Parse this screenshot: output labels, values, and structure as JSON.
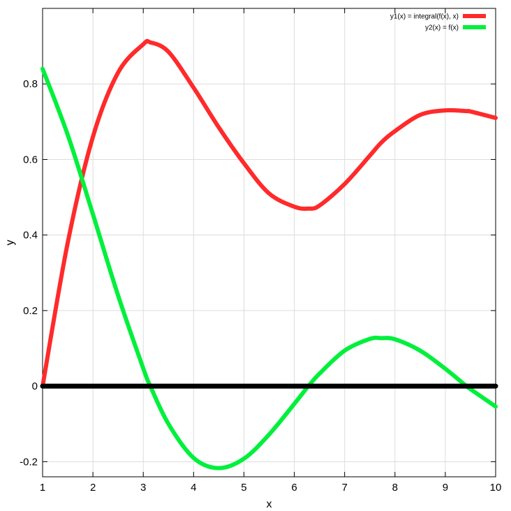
{
  "chart_data": {
    "type": "line",
    "title": "",
    "xlabel": "x",
    "ylabel": "y",
    "xlim": [
      1,
      10
    ],
    "ylim": [
      -0.24,
      1.0
    ],
    "grid": true,
    "legend_position": "top-right",
    "x_ticks": [
      1,
      2,
      3,
      4,
      5,
      6,
      7,
      8,
      9,
      10
    ],
    "x_tick_labels": [
      "1",
      "2",
      "3",
      "4",
      "5",
      "6",
      "7",
      "8",
      "9",
      "10"
    ],
    "y_ticks": [
      -0.2,
      0,
      0.2,
      0.4,
      0.6,
      0.8
    ],
    "y_tick_labels": [
      "-0.2",
      "0",
      "0.2",
      "0.4",
      "0.6",
      "0.8"
    ],
    "x": [
      1.0,
      1.5,
      2.0,
      2.5,
      3.0,
      3.14,
      3.5,
      4.0,
      4.5,
      5.0,
      5.5,
      6.0,
      6.28,
      6.5,
      7.0,
      7.5,
      7.73,
      8.0,
      8.5,
      9.0,
      9.42,
      9.5,
      10.0
    ],
    "series": [
      {
        "name": "y1(x) = integral(f(x), x)",
        "color": "#ff2a2a",
        "values": [
          0.0,
          0.38,
          0.66,
          0.83,
          0.905,
          0.91,
          0.885,
          0.79,
          0.685,
          0.59,
          0.51,
          0.475,
          0.47,
          0.478,
          0.535,
          0.61,
          0.645,
          0.675,
          0.718,
          0.73,
          0.728,
          0.727,
          0.71
        ]
      },
      {
        "name": "y2(x) = f(x)",
        "color": "#00f03c",
        "values": [
          0.84,
          0.665,
          0.455,
          0.24,
          0.047,
          0.0,
          -0.1,
          -0.19,
          -0.217,
          -0.192,
          -0.128,
          -0.047,
          0.0,
          0.033,
          0.094,
          0.125,
          0.127,
          0.124,
          0.094,
          0.046,
          0.0,
          -0.008,
          -0.054
        ]
      },
      {
        "name": "",
        "color": "#000000",
        "values": [
          0,
          0,
          0,
          0,
          0,
          0,
          0,
          0,
          0,
          0,
          0,
          0,
          0,
          0,
          0,
          0,
          0,
          0,
          0,
          0,
          0,
          0,
          0
        ]
      }
    ]
  }
}
